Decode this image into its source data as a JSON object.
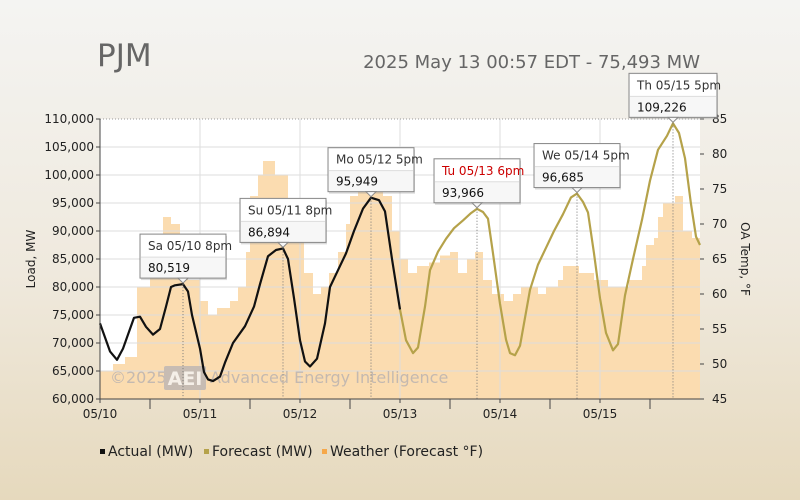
{
  "header": {
    "brand": "PJM",
    "status": "2025 May 13 00:57 EDT - 75,493 MW"
  },
  "watermark": {
    "badge": "AEI",
    "prefix": "©2025",
    "text": "Advanced Energy Intelligence"
  },
  "chart_data": {
    "type": "line",
    "xlim": [
      0,
      6
    ],
    "x_ticks": [
      {
        "x": 0,
        "label": "05/10"
      },
      {
        "x": 1,
        "label": "05/11"
      },
      {
        "x": 2,
        "label": "05/12"
      },
      {
        "x": 3,
        "label": "05/13"
      },
      {
        "x": 4,
        "label": "05/14"
      },
      {
        "x": 5,
        "label": "05/15"
      }
    ],
    "ylabel": "Load, MW",
    "ylim": [
      60000,
      110000
    ],
    "y_ticks": [
      "60,000",
      "65,000",
      "70,000",
      "75,000",
      "80,000",
      "85,000",
      "90,000",
      "95,000",
      "100,000",
      "105,000",
      "110,000"
    ],
    "y2label": "OA Temp, °F",
    "y2lim": [
      45,
      85
    ],
    "y2_ticks": [
      "45",
      "50",
      "55",
      "60",
      "65",
      "70",
      "75",
      "80",
      "85"
    ],
    "colors": {
      "actual": "#111111",
      "forecast": "#b5a24a",
      "weather": "#fbdcb0"
    },
    "series": [
      {
        "name": "Actual (MW)",
        "values": [
          [
            0,
            73500
          ],
          [
            0.05,
            71000
          ],
          [
            0.1,
            68500
          ],
          [
            0.17,
            67000
          ],
          [
            0.23,
            69000
          ],
          [
            0.29,
            72000
          ],
          [
            0.34,
            74500
          ],
          [
            0.4,
            74700
          ],
          [
            0.46,
            72900
          ],
          [
            0.53,
            71500
          ],
          [
            0.6,
            72500
          ],
          [
            0.66,
            76500
          ],
          [
            0.71,
            80000
          ],
          [
            0.75,
            80300
          ],
          [
            0.83,
            80519
          ],
          [
            0.88,
            79200
          ],
          [
            0.92,
            75000
          ],
          [
            1.0,
            69000
          ],
          [
            1.04,
            64800
          ],
          [
            1.08,
            63500
          ],
          [
            1.13,
            63200
          ],
          [
            1.2,
            64000
          ],
          [
            1.25,
            66500
          ],
          [
            1.33,
            70000
          ],
          [
            1.45,
            73000
          ],
          [
            1.54,
            76500
          ],
          [
            1.6,
            80500
          ],
          [
            1.68,
            85500
          ],
          [
            1.76,
            86600
          ],
          [
            1.83,
            86894
          ],
          [
            1.88,
            85000
          ],
          [
            1.94,
            78000
          ],
          [
            2.0,
            70500
          ],
          [
            2.05,
            66700
          ],
          [
            2.1,
            65800
          ],
          [
            2.17,
            67200
          ],
          [
            2.25,
            73500
          ],
          [
            2.3,
            80000
          ],
          [
            2.38,
            83000
          ],
          [
            2.46,
            86000
          ],
          [
            2.54,
            90000
          ],
          [
            2.63,
            94000
          ],
          [
            2.71,
            95949
          ],
          [
            2.79,
            95500
          ],
          [
            2.85,
            93500
          ],
          [
            2.92,
            85000
          ],
          [
            3.0,
            76000
          ]
        ]
      },
      {
        "name": "Forecast (MW)",
        "values": [
          [
            3.0,
            76000
          ],
          [
            3.06,
            70500
          ],
          [
            3.13,
            68200
          ],
          [
            3.18,
            69200
          ],
          [
            3.25,
            76500
          ],
          [
            3.3,
            83000
          ],
          [
            3.38,
            86300
          ],
          [
            3.46,
            88600
          ],
          [
            3.54,
            90500
          ],
          [
            3.63,
            91900
          ],
          [
            3.71,
            93200
          ],
          [
            3.77,
            93966
          ],
          [
            3.83,
            93400
          ],
          [
            3.88,
            92200
          ],
          [
            3.93,
            86000
          ],
          [
            4.0,
            77000
          ],
          [
            4.06,
            70600
          ],
          [
            4.1,
            68200
          ],
          [
            4.15,
            67800
          ],
          [
            4.2,
            69500
          ],
          [
            4.3,
            79500
          ],
          [
            4.38,
            84000
          ],
          [
            4.46,
            87000
          ],
          [
            4.54,
            90000
          ],
          [
            4.63,
            93000
          ],
          [
            4.71,
            96000
          ],
          [
            4.77,
            96685
          ],
          [
            4.83,
            95200
          ],
          [
            4.88,
            93300
          ],
          [
            4.94,
            86000
          ],
          [
            5.0,
            78000
          ],
          [
            5.06,
            71800
          ],
          [
            5.13,
            68700
          ],
          [
            5.18,
            69800
          ],
          [
            5.25,
            78500
          ],
          [
            5.33,
            85000
          ],
          [
            5.42,
            92000
          ],
          [
            5.5,
            99000
          ],
          [
            5.58,
            104500
          ],
          [
            5.67,
            107000
          ],
          [
            5.73,
            109226
          ],
          [
            5.79,
            107500
          ],
          [
            5.85,
            103000
          ],
          [
            5.91,
            94800
          ],
          [
            5.96,
            89000
          ],
          [
            6.0,
            87500
          ]
        ]
      },
      {
        "name": "Weather (Forecast °F)",
        "values": [
          [
            0,
            49
          ],
          [
            0.13,
            49
          ],
          [
            0.13,
            50
          ],
          [
            0.25,
            50
          ],
          [
            0.25,
            51
          ],
          [
            0.37,
            51
          ],
          [
            0.37,
            61
          ],
          [
            0.5,
            61
          ],
          [
            0.5,
            65
          ],
          [
            0.58,
            65
          ],
          [
            0.58,
            68
          ],
          [
            0.63,
            68
          ],
          [
            0.63,
            71
          ],
          [
            0.71,
            71
          ],
          [
            0.71,
            70
          ],
          [
            0.8,
            70
          ],
          [
            0.8,
            67
          ],
          [
            0.88,
            67
          ],
          [
            0.88,
            62
          ],
          [
            1.0,
            62
          ],
          [
            1.0,
            59
          ],
          [
            1.08,
            59
          ],
          [
            1.08,
            57
          ],
          [
            1.17,
            57
          ],
          [
            1.17,
            58
          ],
          [
            1.3,
            58
          ],
          [
            1.3,
            59
          ],
          [
            1.38,
            59
          ],
          [
            1.38,
            61
          ],
          [
            1.46,
            61
          ],
          [
            1.46,
            66
          ],
          [
            1.5,
            66
          ],
          [
            1.5,
            74
          ],
          [
            1.58,
            74
          ],
          [
            1.58,
            77
          ],
          [
            1.63,
            77
          ],
          [
            1.63,
            79
          ],
          [
            1.75,
            79
          ],
          [
            1.75,
            77
          ],
          [
            1.88,
            77
          ],
          [
            1.88,
            73
          ],
          [
            1.96,
            73
          ],
          [
            1.96,
            68
          ],
          [
            2.04,
            68
          ],
          [
            2.04,
            63
          ],
          [
            2.13,
            63
          ],
          [
            2.13,
            60
          ],
          [
            2.21,
            60
          ],
          [
            2.21,
            61
          ],
          [
            2.29,
            61
          ],
          [
            2.29,
            63
          ],
          [
            2.38,
            63
          ],
          [
            2.38,
            66
          ],
          [
            2.46,
            66
          ],
          [
            2.46,
            70
          ],
          [
            2.5,
            70
          ],
          [
            2.5,
            74
          ],
          [
            2.58,
            74
          ],
          [
            2.58,
            77
          ],
          [
            2.67,
            77
          ],
          [
            2.67,
            78
          ],
          [
            2.75,
            78
          ],
          [
            2.75,
            77
          ],
          [
            2.83,
            77
          ],
          [
            2.83,
            74
          ],
          [
            2.92,
            74
          ],
          [
            2.92,
            69
          ],
          [
            3.0,
            69
          ],
          [
            3.0,
            65
          ],
          [
            3.08,
            65
          ],
          [
            3.08,
            63
          ],
          [
            3.17,
            63
          ],
          [
            3.17,
            64
          ],
          [
            3.29,
            64
          ],
          [
            3.29,
            64.5
          ],
          [
            3.4,
            64.5
          ],
          [
            3.4,
            65.5
          ],
          [
            3.5,
            65.5
          ],
          [
            3.5,
            66
          ],
          [
            3.58,
            66
          ],
          [
            3.58,
            63
          ],
          [
            3.67,
            63
          ],
          [
            3.67,
            65
          ],
          [
            3.75,
            65
          ],
          [
            3.75,
            66
          ],
          [
            3.83,
            66
          ],
          [
            3.83,
            62
          ],
          [
            3.92,
            62
          ],
          [
            3.92,
            60
          ],
          [
            4.04,
            60
          ],
          [
            4.04,
            59
          ],
          [
            4.13,
            59
          ],
          [
            4.13,
            60
          ],
          [
            4.21,
            60
          ],
          [
            4.21,
            61
          ],
          [
            4.38,
            61
          ],
          [
            4.38,
            60
          ],
          [
            4.46,
            60
          ],
          [
            4.46,
            61
          ],
          [
            4.58,
            61
          ],
          [
            4.58,
            62
          ],
          [
            4.63,
            62
          ],
          [
            4.63,
            64
          ],
          [
            4.79,
            64
          ],
          [
            4.79,
            63
          ],
          [
            4.94,
            63
          ],
          [
            4.94,
            62
          ],
          [
            5.08,
            62
          ],
          [
            5.08,
            61
          ],
          [
            5.29,
            61
          ],
          [
            5.29,
            62
          ],
          [
            5.42,
            62
          ],
          [
            5.42,
            64
          ],
          [
            5.46,
            64
          ],
          [
            5.46,
            67
          ],
          [
            5.54,
            67
          ],
          [
            5.54,
            68
          ],
          [
            5.58,
            68
          ],
          [
            5.58,
            71
          ],
          [
            5.63,
            71
          ],
          [
            5.63,
            73
          ],
          [
            5.75,
            73
          ],
          [
            5.75,
            74
          ],
          [
            5.83,
            74
          ],
          [
            5.83,
            69
          ],
          [
            5.92,
            69
          ],
          [
            5.92,
            68
          ],
          [
            6.0,
            68
          ]
        ]
      }
    ],
    "annotations": [
      {
        "date": "Sa 05/10 8pm",
        "value": "80,519",
        "x": 0.83,
        "y": 80519,
        "highlight": false
      },
      {
        "date": "Su 05/11 8pm",
        "value": "86,894",
        "x": 1.83,
        "y": 86894,
        "highlight": false
      },
      {
        "date": "Mo 05/12 5pm",
        "value": "95,949",
        "x": 2.71,
        "y": 95949,
        "highlight": false
      },
      {
        "date": "Tu 05/13 6pm",
        "value": "93,966",
        "x": 3.77,
        "y": 93966,
        "highlight": true
      },
      {
        "date": "We 05/14 5pm",
        "value": "96,685",
        "x": 4.77,
        "y": 96685,
        "highlight": false
      },
      {
        "date": "Th 05/15 5pm",
        "value": "109,226",
        "x": 5.73,
        "y": 109226,
        "highlight": false
      }
    ],
    "legend": [
      {
        "label": "Actual (MW)",
        "color": "#111111"
      },
      {
        "label": "Forecast (MW)",
        "color": "#b5a24a"
      },
      {
        "label": "Weather (Forecast °F)",
        "color": "#f6a84a"
      }
    ],
    "legend_position": "bottom-left"
  }
}
